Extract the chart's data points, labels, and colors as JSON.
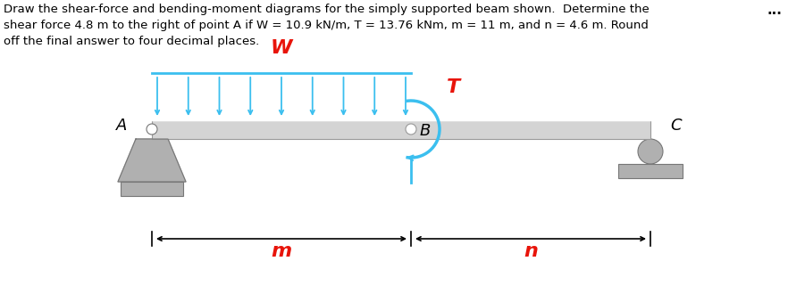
{
  "title_line1": "Draw the shear-force and bending-moment diagrams for the simply supported beam shown.  Determine the",
  "title_line2": "shear force 4.8 m to the right of point A if W = 10.9 kN/m, T = 13.76 kNm, m = 11 m, and n = 4.6 m. Round",
  "title_line3": "off the final answer to four decimal places.",
  "text_W": "W",
  "text_T": "T",
  "text_A": "A",
  "text_B": "B",
  "text_C": "C",
  "text_m": "m",
  "text_n": "n",
  "text_dots": "...",
  "beam_color": "#d4d4d4",
  "beam_edge_color": "#999999",
  "load_color": "#3bbfef",
  "moment_color": "#3bbfef",
  "label_color_red": "#e8140a",
  "support_fill": "#b0b0b0",
  "support_edge": "#777777",
  "ground_fill": "#b0b0b0",
  "bg_color": "#ffffff",
  "fig_width": 8.82,
  "fig_height": 3.3,
  "dpi": 100
}
